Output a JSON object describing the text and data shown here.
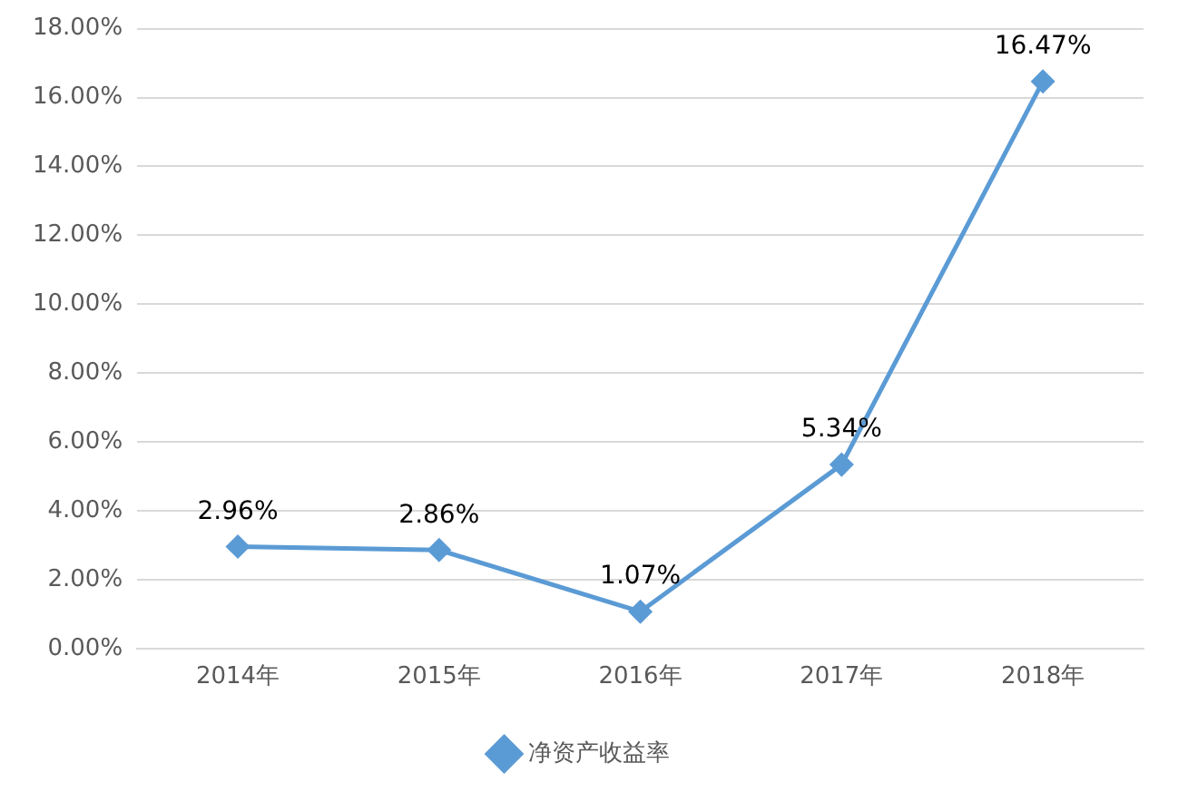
{
  "chart_data": {
    "type": "line",
    "categories": [
      "2014年",
      "2015年",
      "2016年",
      "2017年",
      "2018年"
    ],
    "series": [
      {
        "name": "净资产收益率",
        "color": "#5b9bd5",
        "values": [
          2.96,
          2.86,
          1.07,
          5.34,
          16.47
        ],
        "value_labels": [
          "2.96%",
          "2.86%",
          "1.07%",
          "5.34%",
          "16.47%"
        ]
      }
    ],
    "ylim": [
      0,
      18
    ],
    "yticks": [
      {
        "value": 0,
        "label": "0.00%"
      },
      {
        "value": 2,
        "label": "2.00%"
      },
      {
        "value": 4,
        "label": "4.00%"
      },
      {
        "value": 6,
        "label": "6.00%"
      },
      {
        "value": 8,
        "label": "8.00%"
      },
      {
        "value": 10,
        "label": "10.00%"
      },
      {
        "value": 12,
        "label": "12.00%"
      },
      {
        "value": 14,
        "label": "14.00%"
      },
      {
        "value": 16,
        "label": "16.00%"
      },
      {
        "value": 18,
        "label": "18.00%"
      }
    ],
    "grid": "y",
    "legend": "bottom",
    "marker": "diamond",
    "line_style": "solid"
  }
}
